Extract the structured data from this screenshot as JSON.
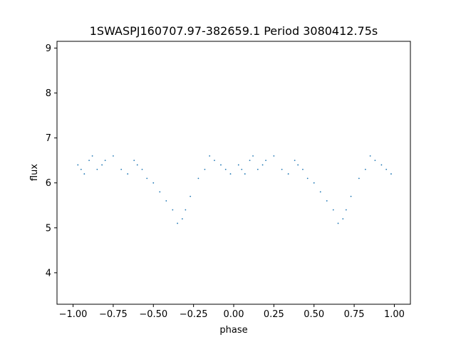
{
  "chart_data": {
    "type": "scatter",
    "title": "1SWASPJ160707.97-382659.1 Period 3080412.75s",
    "xlabel": "phase",
    "ylabel": "flux",
    "xlim": [
      -1.1,
      1.1
    ],
    "ylim": [
      3.3,
      9.15
    ],
    "xticks": [
      -1.0,
      -0.75,
      -0.5,
      -0.25,
      0.0,
      0.25,
      0.5,
      0.75,
      1.0
    ],
    "xtick_labels": [
      "−1.00",
      "−0.75",
      "−0.50",
      "−0.25",
      "0.00",
      "0.25",
      "0.50",
      "0.75",
      "1.00"
    ],
    "yticks": [
      4,
      5,
      6,
      7,
      8,
      9
    ],
    "ytick_labels": [
      "4",
      "5",
      "6",
      "7",
      "8",
      "9"
    ],
    "grid": false,
    "marker_color": "#1f77b4",
    "series": [
      {
        "x": [
          -0.97,
          -0.95,
          -0.93,
          -0.9,
          -0.88,
          -0.85,
          -0.82,
          -0.8,
          -0.75,
          -0.7,
          -0.66,
          -0.62,
          -0.6,
          -0.57,
          -0.54,
          -0.5,
          -0.46,
          -0.42,
          -0.38,
          -0.35,
          -0.32,
          -0.3,
          -0.27,
          -0.22,
          -0.18,
          -0.15,
          -0.12,
          -0.08,
          -0.05,
          -0.02,
          0.03,
          0.05,
          0.07,
          0.1,
          0.12,
          0.15,
          0.18,
          0.2,
          0.25,
          0.3,
          0.34,
          0.38,
          0.4,
          0.43,
          0.46,
          0.5,
          0.54,
          0.58,
          0.62,
          0.65,
          0.68,
          0.7,
          0.73,
          0.78,
          0.82,
          0.85,
          0.88,
          0.92,
          0.95,
          0.98
        ],
        "y": [
          6.4,
          6.3,
          6.2,
          6.5,
          6.6,
          6.3,
          6.4,
          6.5,
          6.6,
          6.3,
          6.2,
          6.5,
          6.4,
          6.3,
          6.1,
          6.0,
          5.8,
          5.6,
          5.4,
          5.1,
          5.2,
          5.4,
          5.7,
          6.1,
          6.3,
          6.6,
          6.5,
          6.4,
          6.3,
          6.2,
          6.4,
          6.3,
          6.2,
          6.5,
          6.6,
          6.3,
          6.4,
          6.5,
          6.6,
          6.3,
          6.2,
          6.5,
          6.4,
          6.3,
          6.1,
          6.0,
          5.8,
          5.6,
          5.4,
          5.1,
          5.2,
          5.4,
          5.7,
          6.1,
          6.3,
          6.6,
          6.5,
          6.4,
          6.3,
          6.2
        ]
      }
    ]
  }
}
